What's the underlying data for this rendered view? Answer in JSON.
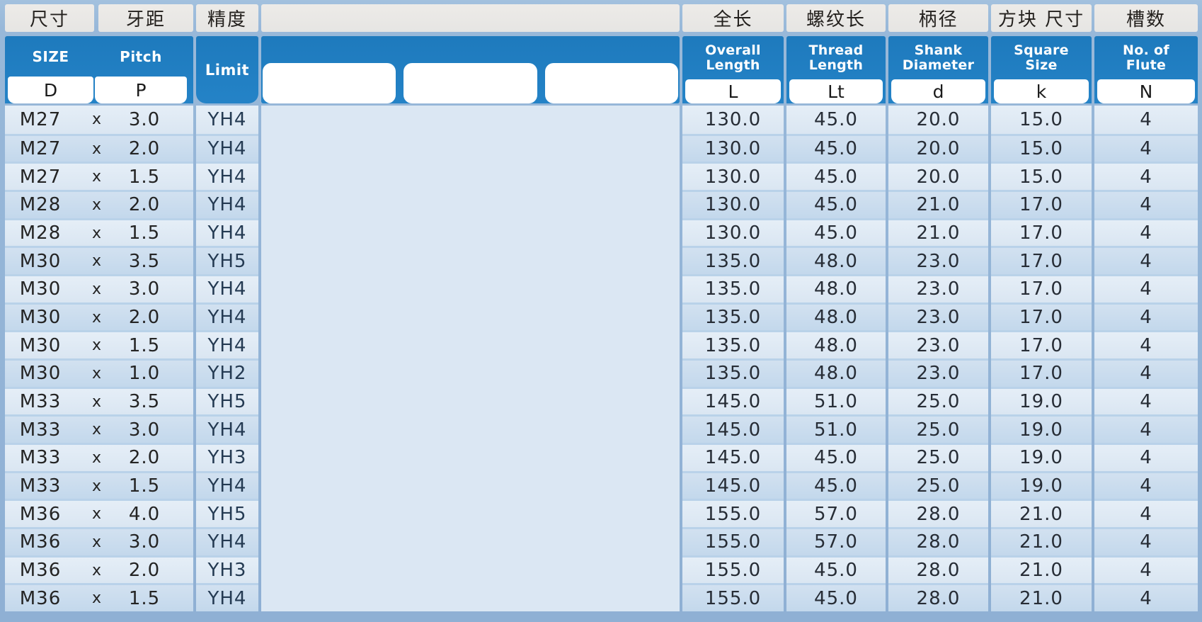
{
  "table": {
    "x_label": "x",
    "header": {
      "size": {
        "cn": "尺寸",
        "en": "SIZE",
        "sym": "D"
      },
      "pitch": {
        "cn": "牙距",
        "en": "Pitch",
        "sym": "P"
      },
      "limit": {
        "cn": "精度",
        "en": "Limit"
      },
      "blank": {
        "cn": ""
      },
      "overall": {
        "cn": "全长",
        "en": "Overall\nLength",
        "sym": "L"
      },
      "thread": {
        "cn": "螺纹长",
        "en": "Thread\nLength",
        "sym": "Lt"
      },
      "shank": {
        "cn": "柄径",
        "en": "Shank\nDiameter",
        "sym": "d"
      },
      "square": {
        "cn": "方块 尺寸",
        "en": "Square\nSize",
        "sym": "k"
      },
      "flute": {
        "cn": "槽数",
        "en": "No. of\nFlute",
        "sym": "N"
      }
    },
    "rows": [
      {
        "size": "M27",
        "pitch": "3.0",
        "limit": "YH4",
        "L": "130.0",
        "Lt": "45.0",
        "d": "20.0",
        "k": "15.0",
        "N": "4"
      },
      {
        "size": "M27",
        "pitch": "2.0",
        "limit": "YH4",
        "L": "130.0",
        "Lt": "45.0",
        "d": "20.0",
        "k": "15.0",
        "N": "4"
      },
      {
        "size": "M27",
        "pitch": "1.5",
        "limit": "YH4",
        "L": "130.0",
        "Lt": "45.0",
        "d": "20.0",
        "k": "15.0",
        "N": "4"
      },
      {
        "size": "M28",
        "pitch": "2.0",
        "limit": "YH4",
        "L": "130.0",
        "Lt": "45.0",
        "d": "21.0",
        "k": "17.0",
        "N": "4"
      },
      {
        "size": "M28",
        "pitch": "1.5",
        "limit": "YH4",
        "L": "130.0",
        "Lt": "45.0",
        "d": "21.0",
        "k": "17.0",
        "N": "4"
      },
      {
        "size": "M30",
        "pitch": "3.5",
        "limit": "YH5",
        "L": "135.0",
        "Lt": "48.0",
        "d": "23.0",
        "k": "17.0",
        "N": "4"
      },
      {
        "size": "M30",
        "pitch": "3.0",
        "limit": "YH4",
        "L": "135.0",
        "Lt": "48.0",
        "d": "23.0",
        "k": "17.0",
        "N": "4"
      },
      {
        "size": "M30",
        "pitch": "2.0",
        "limit": "YH4",
        "L": "135.0",
        "Lt": "48.0",
        "d": "23.0",
        "k": "17.0",
        "N": "4"
      },
      {
        "size": "M30",
        "pitch": "1.5",
        "limit": "YH4",
        "L": "135.0",
        "Lt": "48.0",
        "d": "23.0",
        "k": "17.0",
        "N": "4"
      },
      {
        "size": "M30",
        "pitch": "1.0",
        "limit": "YH2",
        "L": "135.0",
        "Lt": "48.0",
        "d": "23.0",
        "k": "17.0",
        "N": "4"
      },
      {
        "size": "M33",
        "pitch": "3.5",
        "limit": "YH5",
        "L": "145.0",
        "Lt": "51.0",
        "d": "25.0",
        "k": "19.0",
        "N": "4"
      },
      {
        "size": "M33",
        "pitch": "3.0",
        "limit": "YH4",
        "L": "145.0",
        "Lt": "51.0",
        "d": "25.0",
        "k": "19.0",
        "N": "4"
      },
      {
        "size": "M33",
        "pitch": "2.0",
        "limit": "YH3",
        "L": "145.0",
        "Lt": "45.0",
        "d": "25.0",
        "k": "19.0",
        "N": "4"
      },
      {
        "size": "M33",
        "pitch": "1.5",
        "limit": "YH4",
        "L": "145.0",
        "Lt": "45.0",
        "d": "25.0",
        "k": "19.0",
        "N": "4"
      },
      {
        "size": "M36",
        "pitch": "4.0",
        "limit": "YH5",
        "L": "155.0",
        "Lt": "57.0",
        "d": "28.0",
        "k": "21.0",
        "N": "4"
      },
      {
        "size": "M36",
        "pitch": "3.0",
        "limit": "YH4",
        "L": "155.0",
        "Lt": "57.0",
        "d": "28.0",
        "k": "21.0",
        "N": "4"
      },
      {
        "size": "M36",
        "pitch": "2.0",
        "limit": "YH3",
        "L": "155.0",
        "Lt": "45.0",
        "d": "28.0",
        "k": "21.0",
        "N": "4"
      },
      {
        "size": "M36",
        "pitch": "1.5",
        "limit": "YH4",
        "L": "155.0",
        "Lt": "45.0",
        "d": "28.0",
        "k": "21.0",
        "N": "4"
      }
    ]
  },
  "colors": {
    "accent_blue": "#2080c4",
    "background_blue": "#98b8d9",
    "header_gray": "#eae9e6",
    "row_light": "#dfe9f4",
    "row_dark": "#c8dcee",
    "middle_blank": "#dbe7f3"
  }
}
